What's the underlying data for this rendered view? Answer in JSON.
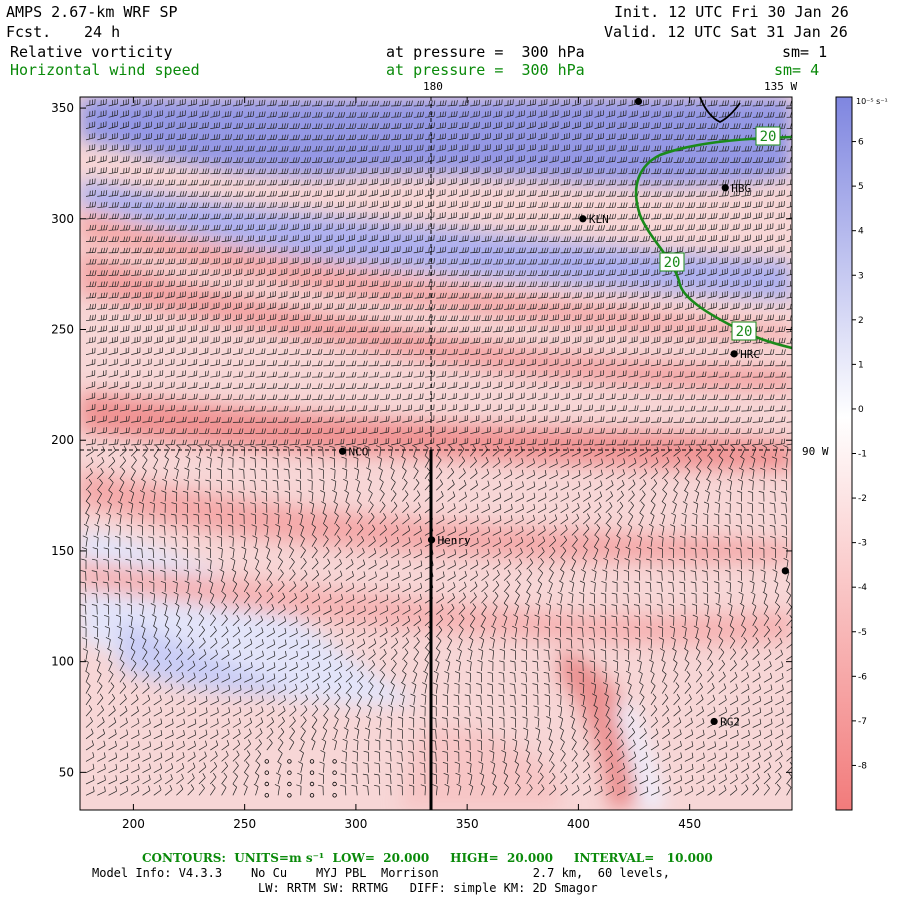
{
  "header": {
    "model": "AMPS 2.67-km WRF SP",
    "fcst_label": "Fcst.",
    "fcst_value": "24 h",
    "init": "Init. 12 UTC Fri 30 Jan 26",
    "valid": "Valid. 12 UTC Sat 31 Jan 26",
    "field1": "Relative vorticity",
    "field1_level": "at pressure =  300 hPa",
    "field1_sm": "sm= 1",
    "field2": "Horizontal wind speed",
    "field2_level": "at pressure =  300 hPa",
    "field2_sm": "sm= 4"
  },
  "map_labels": {
    "lon_180": "180",
    "lon_135w": "135 W",
    "lon_90w": "90 W"
  },
  "colors": {
    "negative": "#f08080",
    "positive": "#7f86e0",
    "contour": "#1a8a1a"
  },
  "chart_data": {
    "type": "heatmap",
    "title": "Relative vorticity at pressure = 300 hPa",
    "x_ticks": [
      200,
      250,
      300,
      350,
      400,
      450
    ],
    "y_ticks": [
      50,
      100,
      150,
      200,
      250,
      300,
      350
    ],
    "xlim": [
      176,
      496
    ],
    "ylim": [
      33,
      355
    ],
    "colorbar": {
      "unit": "10⁻⁵ s⁻¹",
      "ticks": [
        6,
        5,
        4,
        3,
        2,
        1,
        0,
        -1,
        -2,
        -3,
        -4,
        -5,
        -6,
        -7,
        -8
      ],
      "range": [
        -9,
        7
      ]
    },
    "wind_contour_labels": [
      "20",
      "20",
      "20"
    ],
    "stations": [
      {
        "name": "HBG",
        "x": 466,
        "y": 314
      },
      {
        "name": "KLN",
        "x": 402,
        "y": 300
      },
      {
        "name": "HRC",
        "x": 470,
        "y": 239
      },
      {
        "name": "NCO",
        "x": 294,
        "y": 195
      },
      {
        "name": "Henry",
        "x": 334,
        "y": 155
      },
      {
        "name": "RG2",
        "x": 461,
        "y": 73
      },
      {
        "name": "",
        "x": 493,
        "y": 141
      },
      {
        "name": "",
        "x": 427,
        "y": 353
      }
    ]
  },
  "footer": {
    "contours_label": "CONTOURS:  UNITS=m s⁻¹  LOW=  20.000     HIGH=  20.000     INTERVAL=   10.000",
    "model_info": "Model Info: V4.3.3    No Cu    MYJ PBL  Morrison             2.7 km,  60 levels,",
    "physics": "LW: RRTM SW: RRTMG   DIFF: simple KM: 2D Smagor"
  }
}
